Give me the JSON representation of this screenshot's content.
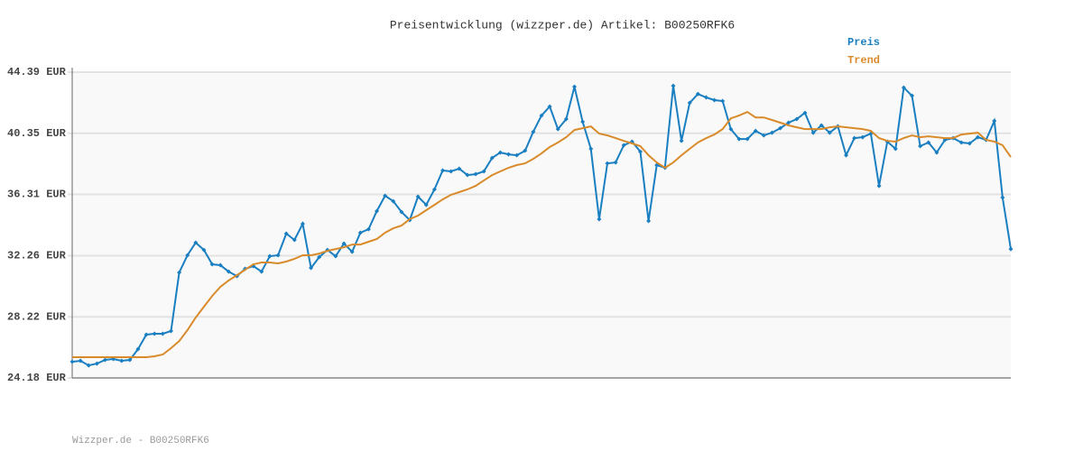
{
  "chart_data": {
    "type": "line",
    "title": "Preisentwicklung (wizzper.de) Artikel: B00250RFK6",
    "footer": "Wizzper.de - B00250RFK6",
    "ylim": [
      24.18,
      44.39
    ],
    "yticks": [
      {
        "value": 24.18,
        "label": "24.18 EUR"
      },
      {
        "value": 28.22,
        "label": "28.22 EUR"
      },
      {
        "value": 32.26,
        "label": "32.26 EUR"
      },
      {
        "value": 36.31,
        "label": "36.31 EUR"
      },
      {
        "value": 40.35,
        "label": "40.35 EUR"
      },
      {
        "value": 44.39,
        "label": "44.39 EUR"
      }
    ],
    "grid": true,
    "series": [
      {
        "name": "Preis",
        "color": "#1a7fc1",
        "markers": true,
        "values": [
          25.25,
          25.31,
          25.01,
          25.13,
          25.37,
          25.43,
          25.31,
          25.37,
          26.09,
          27.04,
          27.1,
          27.1,
          27.28,
          31.15,
          32.29,
          33.12,
          32.64,
          31.69,
          31.63,
          31.21,
          30.91,
          31.39,
          31.57,
          31.21,
          32.23,
          32.29,
          33.72,
          33.3,
          34.37,
          31.45,
          32.17,
          32.64,
          32.23,
          33.06,
          32.52,
          33.78,
          34.01,
          35.21,
          36.22,
          35.86,
          35.15,
          34.61,
          36.16,
          35.62,
          36.64,
          37.89,
          37.83,
          38.01,
          37.59,
          37.65,
          37.83,
          38.72,
          39.08,
          38.96,
          38.9,
          39.2,
          40.45,
          41.52,
          42.12,
          40.63,
          41.29,
          43.43,
          41.11,
          39.32,
          34.67,
          38.36,
          38.42,
          39.56,
          39.8,
          39.14,
          34.55,
          38.25,
          38.07,
          43.49,
          39.85,
          42.36,
          42.95,
          42.72,
          42.54,
          42.48,
          40.63,
          39.97,
          39.97,
          40.51,
          40.21,
          40.39,
          40.69,
          41.05,
          41.29,
          41.7,
          40.39,
          40.87,
          40.39,
          40.81,
          38.9,
          40.03,
          40.09,
          40.33,
          36.87,
          39.8,
          39.32,
          43.37,
          42.83,
          39.5,
          39.74,
          39.08,
          39.91,
          40.03,
          39.74,
          39.68,
          40.09,
          39.91,
          41.17,
          36.1,
          32.7
        ]
      },
      {
        "name": "Trend",
        "color": "#d98b2b",
        "markers": false,
        "values": [
          25.55,
          25.55,
          25.55,
          25.55,
          25.55,
          25.55,
          25.55,
          25.55,
          25.55,
          25.55,
          25.61,
          25.73,
          26.15,
          26.62,
          27.34,
          28.17,
          28.89,
          29.6,
          30.2,
          30.62,
          30.97,
          31.33,
          31.69,
          31.81,
          31.81,
          31.75,
          31.87,
          32.05,
          32.29,
          32.29,
          32.4,
          32.58,
          32.7,
          32.82,
          33.0,
          33.0,
          33.18,
          33.36,
          33.78,
          34.07,
          34.25,
          34.67,
          34.91,
          35.27,
          35.62,
          35.98,
          36.28,
          36.46,
          36.64,
          36.87,
          37.23,
          37.59,
          37.83,
          38.07,
          38.25,
          38.36,
          38.66,
          39.02,
          39.44,
          39.74,
          40.09,
          40.57,
          40.69,
          40.81,
          40.33,
          40.21,
          40.03,
          39.85,
          39.68,
          39.5,
          38.9,
          38.42,
          38.07,
          38.42,
          38.9,
          39.32,
          39.74,
          40.03,
          40.27,
          40.63,
          41.34,
          41.52,
          41.76,
          41.4,
          41.4,
          41.23,
          41.05,
          40.87,
          40.75,
          40.63,
          40.63,
          40.63,
          40.75,
          40.81,
          40.75,
          40.69,
          40.63,
          40.51,
          40.03,
          39.85,
          39.8,
          40.03,
          40.21,
          40.09,
          40.15,
          40.09,
          40.03,
          40.03,
          40.27,
          40.33,
          40.39,
          39.91,
          39.8,
          39.56,
          38.78
        ]
      }
    ]
  }
}
